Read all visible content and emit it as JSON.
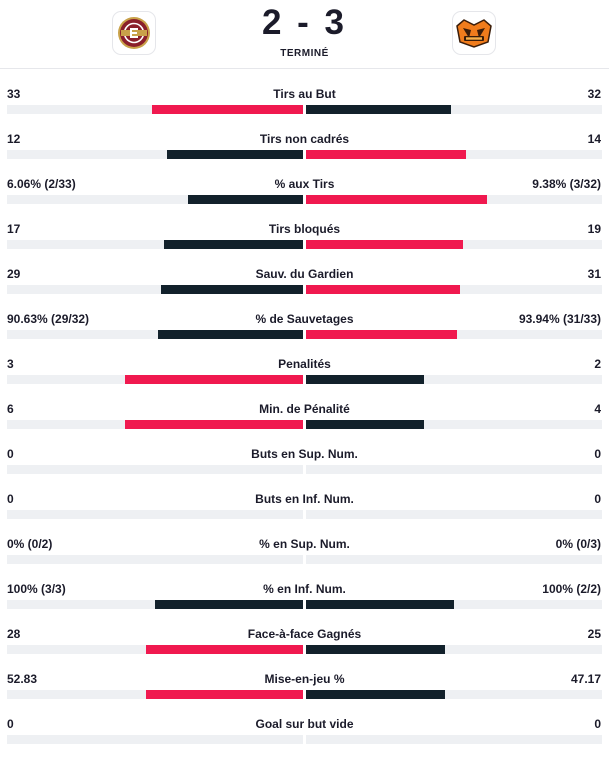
{
  "match": {
    "score": "2 - 3",
    "status": "TERMINÉ",
    "home_team": {
      "logo_icon": "geneve-servette-logo-icon",
      "color": "#8a1f2b"
    },
    "away_team": {
      "logo_icon": "scl-tigers-logo-icon",
      "color": "#f07c1c"
    }
  },
  "colors": {
    "winner": "#f0194f",
    "loser": "#12212b",
    "track": "#eef0f3",
    "text": "#1b1b2a"
  },
  "stats": [
    {
      "label": "Tirs au But",
      "home": "33",
      "away": "32",
      "home_share": 0.51,
      "away_share": 0.49,
      "home_color": "winner",
      "away_color": "loser"
    },
    {
      "label": "Tirs non cadrés",
      "home": "12",
      "away": "14",
      "home_share": 0.46,
      "away_share": 0.54,
      "home_color": "loser",
      "away_color": "winner"
    },
    {
      "label": "% aux Tirs",
      "home": "6.06% (2/33)",
      "away": "9.38% (3/32)",
      "home_share": 0.39,
      "away_share": 0.61,
      "home_color": "loser",
      "away_color": "winner"
    },
    {
      "label": "Tirs bloqués",
      "home": "17",
      "away": "19",
      "home_share": 0.47,
      "away_share": 0.53,
      "home_color": "loser",
      "away_color": "winner"
    },
    {
      "label": "Sauv. du Gardien",
      "home": "29",
      "away": "31",
      "home_share": 0.48,
      "away_share": 0.52,
      "home_color": "loser",
      "away_color": "winner"
    },
    {
      "label": "% de Sauvetages",
      "home": "90.63% (29/32)",
      "away": "93.94% (31/33)",
      "home_share": 0.49,
      "away_share": 0.51,
      "home_color": "loser",
      "away_color": "winner"
    },
    {
      "label": "Penalités",
      "home": "3",
      "away": "2",
      "home_share": 0.6,
      "away_share": 0.4,
      "home_color": "winner",
      "away_color": "loser"
    },
    {
      "label": "Min. de Pénalité",
      "home": "6",
      "away": "4",
      "home_share": 0.6,
      "away_share": 0.4,
      "home_color": "winner",
      "away_color": "loser"
    },
    {
      "label": "Buts en Sup. Num.",
      "home": "0",
      "away": "0",
      "home_share": 0,
      "away_share": 0,
      "home_color": "loser",
      "away_color": "loser"
    },
    {
      "label": "Buts en Inf. Num.",
      "home": "0",
      "away": "0",
      "home_share": 0,
      "away_share": 0,
      "home_color": "loser",
      "away_color": "loser"
    },
    {
      "label": "% en Sup. Num.",
      "home": "0% (0/2)",
      "away": "0% (0/3)",
      "home_share": 0,
      "away_share": 0,
      "home_color": "loser",
      "away_color": "loser"
    },
    {
      "label": "% en Inf. Num.",
      "home": "100% (3/3)",
      "away": "100% (2/2)",
      "home_share": 0.5,
      "away_share": 0.5,
      "home_color": "loser",
      "away_color": "loser"
    },
    {
      "label": "Face-à-face Gagnés",
      "home": "28",
      "away": "25",
      "home_share": 0.53,
      "away_share": 0.47,
      "home_color": "winner",
      "away_color": "loser"
    },
    {
      "label": "Mise-en-jeu %",
      "home": "52.83",
      "away": "47.17",
      "home_share": 0.53,
      "away_share": 0.47,
      "home_color": "winner",
      "away_color": "loser"
    },
    {
      "label": "Goal sur but vide",
      "home": "0",
      "away": "0",
      "home_share": 0,
      "away_share": 0,
      "home_color": "loser",
      "away_color": "loser"
    }
  ]
}
